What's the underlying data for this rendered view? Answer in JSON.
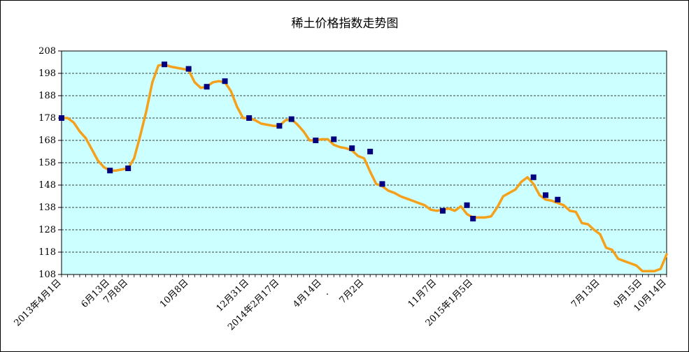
{
  "chart_data": {
    "type": "line",
    "title": "稀土价格指数走势图",
    "xlabel": "",
    "ylabel": "",
    "ylim": [
      108,
      208
    ],
    "yticks": [
      108,
      118,
      128,
      138,
      148,
      158,
      168,
      178,
      188,
      198,
      208
    ],
    "grid": true,
    "legend": "none",
    "colors": {
      "line": "#F5A01A",
      "marker": "#000080",
      "plot_bg": "#CCFFFF",
      "grid": "#000000"
    },
    "x_range": [
      0,
      100
    ],
    "x_tick_labels": [
      {
        "x": 0,
        "label": "2013年4月1日"
      },
      {
        "x": 8,
        "label": "6月13日"
      },
      {
        "x": 11,
        "label": "7月8日"
      },
      {
        "x": 21,
        "label": "10月8日"
      },
      {
        "x": 31,
        "label": "12月31日"
      },
      {
        "x": 36,
        "label": "2014年2月17日"
      },
      {
        "x": 43,
        "label": "4月14日"
      },
      {
        "x": 50,
        "label": "7月2日"
      },
      {
        "x": 62,
        "label": "11月7日"
      },
      {
        "x": 68,
        "label": "2015年1月5日"
      },
      {
        "x": 89,
        "label": "7月13日"
      },
      {
        "x": 96,
        "label": "9月15日"
      },
      {
        "x": 100,
        "label": "10月14日"
      }
    ],
    "series": [
      {
        "values": [
          [
            0,
            178
          ],
          [
            1,
            178
          ],
          [
            2,
            176
          ],
          [
            3,
            172
          ],
          [
            4,
            169
          ],
          [
            5,
            164
          ],
          [
            6,
            159
          ],
          [
            7,
            156
          ],
          [
            8,
            154.5
          ],
          [
            9,
            154.5
          ],
          [
            10,
            155
          ],
          [
            11,
            155.5
          ],
          [
            12,
            160
          ],
          [
            13,
            170
          ],
          [
            14,
            181
          ],
          [
            15,
            194
          ],
          [
            16,
            201.5
          ],
          [
            17,
            202
          ],
          [
            18,
            201
          ],
          [
            19,
            200.5
          ],
          [
            20,
            200
          ],
          [
            21,
            199.5
          ],
          [
            22,
            194
          ],
          [
            23,
            191.5
          ],
          [
            24,
            192
          ],
          [
            25,
            194
          ],
          [
            26,
            194.5
          ],
          [
            27,
            194
          ],
          [
            28,
            190
          ],
          [
            29,
            183
          ],
          [
            30,
            178
          ],
          [
            31,
            178
          ],
          [
            32,
            177
          ],
          [
            33,
            175.5
          ],
          [
            34,
            175
          ],
          [
            35,
            174.5
          ],
          [
            36,
            174.5
          ],
          [
            37,
            177
          ],
          [
            38,
            177.5
          ],
          [
            39,
            175
          ],
          [
            40,
            172
          ],
          [
            41,
            168
          ],
          [
            42,
            168
          ],
          [
            43,
            168.5
          ],
          [
            44,
            168.5
          ],
          [
            45,
            166
          ],
          [
            46,
            165
          ],
          [
            47,
            164.5
          ],
          [
            48,
            163.5
          ],
          [
            49,
            161
          ],
          [
            50,
            160
          ],
          [
            51,
            154
          ],
          [
            52,
            148.5
          ],
          [
            53,
            147.5
          ],
          [
            54,
            145.5
          ],
          [
            55,
            144.5
          ],
          [
            56,
            143
          ],
          [
            57,
            142
          ],
          [
            58,
            141
          ],
          [
            59,
            140
          ],
          [
            60,
            139
          ],
          [
            61,
            137
          ],
          [
            62,
            136.5
          ],
          [
            63,
            137
          ],
          [
            64,
            137.5
          ],
          [
            65,
            136.5
          ],
          [
            66,
            138.5
          ],
          [
            67,
            135
          ],
          [
            68,
            133.5
          ],
          [
            69,
            133.5
          ],
          [
            70,
            133.5
          ],
          [
            71,
            134
          ],
          [
            72,
            138
          ],
          [
            73,
            143
          ],
          [
            74,
            144.5
          ],
          [
            75,
            146
          ],
          [
            76,
            149.5
          ],
          [
            77,
            151.5
          ],
          [
            78,
            148.5
          ],
          [
            79,
            143.5
          ],
          [
            80,
            141.5
          ],
          [
            81,
            141
          ],
          [
            82,
            140
          ],
          [
            83,
            139
          ],
          [
            84,
            136.5
          ],
          [
            85,
            136
          ],
          [
            86,
            131
          ],
          [
            87,
            130.5
          ],
          [
            88,
            128
          ],
          [
            89,
            126
          ],
          [
            90,
            120
          ],
          [
            91,
            119
          ],
          [
            92,
            115
          ],
          [
            93,
            114
          ],
          [
            94,
            113
          ],
          [
            95,
            112
          ],
          [
            96,
            109.5
          ],
          [
            97,
            109.5
          ],
          [
            98,
            109.5
          ],
          [
            99,
            110.5
          ],
          [
            100,
            117
          ]
        ],
        "markers": [
          [
            0,
            178
          ],
          [
            8,
            154.5
          ],
          [
            11,
            155.5
          ],
          [
            17,
            202
          ],
          [
            21,
            200
          ],
          [
            24,
            192
          ],
          [
            27,
            194.5
          ],
          [
            31,
            178
          ],
          [
            36,
            174.5
          ],
          [
            38,
            177.5
          ],
          [
            42,
            168
          ],
          [
            45,
            168.5
          ],
          [
            48,
            164.5
          ],
          [
            51,
            163
          ],
          [
            53,
            148.5
          ],
          [
            63,
            136.5
          ],
          [
            67,
            139
          ],
          [
            68,
            133
          ],
          [
            78,
            151.5
          ],
          [
            80,
            143.5
          ],
          [
            82,
            141.5
          ]
        ]
      }
    ]
  },
  "extra_text": [
    "."
  ]
}
